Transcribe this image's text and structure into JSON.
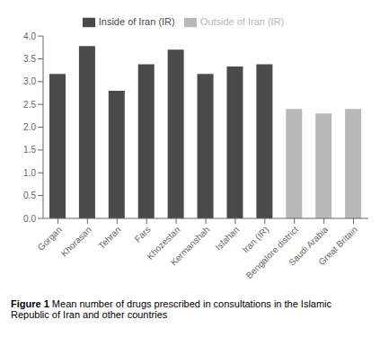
{
  "chart_data": {
    "type": "bar",
    "categories": [
      "Gorgan",
      "Khorasan",
      "Tehran",
      "Fars",
      "Khozestan",
      "Kermanshah",
      "Isfahan",
      "Iran (IR)",
      "Bengalore district",
      "Saudi Arabia",
      "Great Britain"
    ],
    "series": [
      {
        "name": "Inside of Iran (IR)",
        "color": "#4a4a4a",
        "values": [
          3.17,
          3.78,
          2.8,
          3.38,
          3.7,
          3.17,
          3.33,
          3.38,
          null,
          null,
          null
        ]
      },
      {
        "name": "Outside of Iran (IR)",
        "color": "#b8b8b8",
        "values": [
          null,
          null,
          null,
          null,
          null,
          null,
          null,
          null,
          2.4,
          2.3,
          2.4
        ]
      }
    ],
    "ylim": [
      0,
      4.0
    ],
    "yticks": [
      {
        "value": 0,
        "label": "0.0"
      },
      0.5,
      {
        "value": 1,
        "label": "1.0"
      },
      1.5,
      {
        "value": 2,
        "label": "2.0"
      },
      2.5,
      {
        "value": 3,
        "label": "3.0"
      },
      3.5,
      {
        "value": 4,
        "label": "4.0"
      }
    ],
    "grid": false,
    "caption": {
      "bold": "Figure 1",
      "text": " Mean number of drugs prescribed in consultations in the Islamic\nRepublic of Iran and other countries"
    }
  }
}
